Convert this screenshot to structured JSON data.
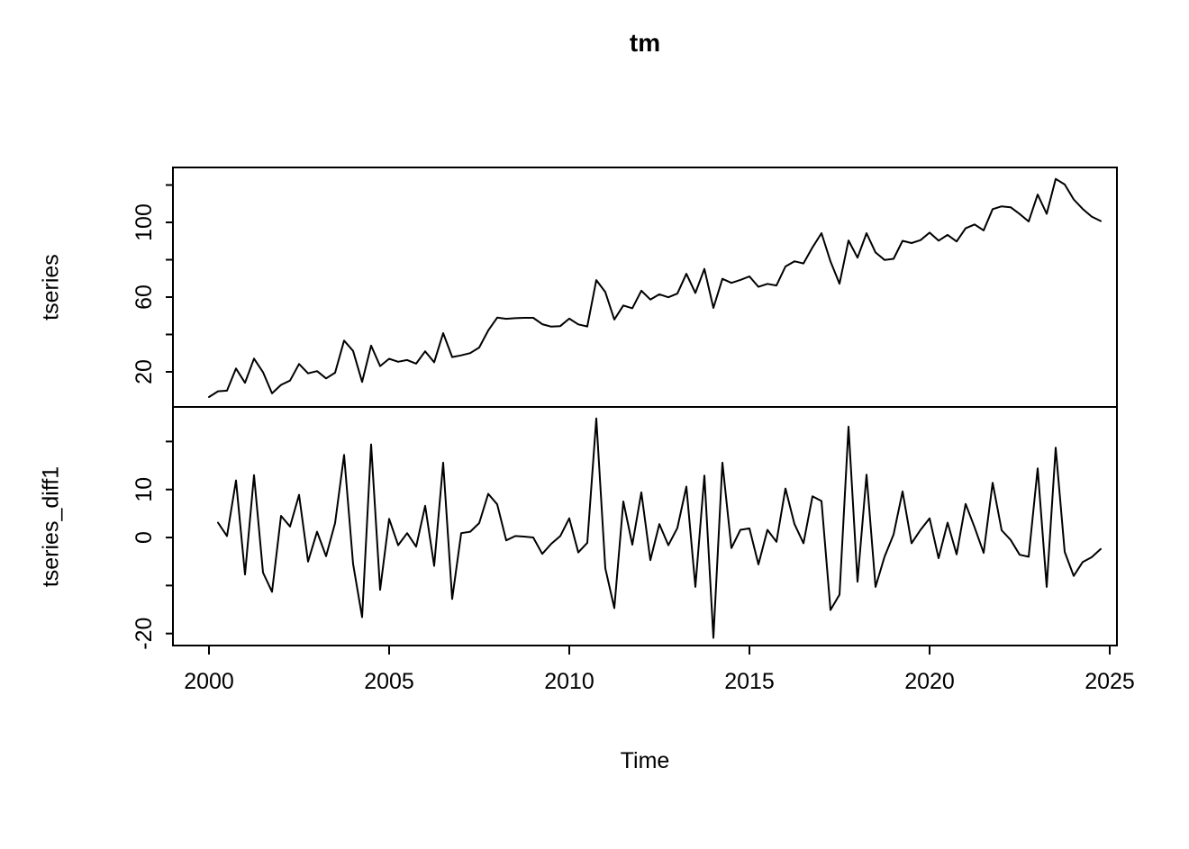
{
  "title": "tm",
  "x_axis": {
    "label": "Time",
    "ticks": [
      2000,
      2005,
      2010,
      2015,
      2020,
      2025
    ],
    "tick_labels": [
      "2000",
      "2005",
      "2010",
      "2015",
      "2020",
      "2025"
    ],
    "xlim": [
      1999.0,
      2025.2
    ]
  },
  "chart_data": [
    {
      "type": "line",
      "panel": "top",
      "series_name": "tseries",
      "ylabel": "tseries",
      "line_color": "#000000",
      "x_start": 2000.0,
      "x_step": 0.25,
      "ylim": [
        1.2,
        129.4
      ],
      "yticks": [
        20,
        40,
        60,
        80,
        100,
        120
      ],
      "ytick_labels": [
        "20",
        "",
        "60",
        "",
        "100",
        ""
      ],
      "values": [
        6.5,
        9.6,
        9.9,
        21.8,
        14.1,
        27.1,
        19.8,
        8.5,
        13.0,
        15.3,
        24.2,
        19.2,
        20.4,
        16.5,
        19.5,
        36.7,
        31.2,
        14.6,
        34.0,
        23.1,
        27.0,
        25.4,
        26.3,
        24.4,
        31.0,
        25.1,
        40.7,
        27.9,
        28.8,
        30.0,
        33.0,
        42.1,
        49.0,
        48.4,
        48.7,
        48.9,
        48.9,
        45.5,
        44.2,
        44.5,
        48.5,
        45.4,
        44.3,
        69.1,
        62.7,
        48.0,
        55.5,
        54.0,
        63.4,
        58.7,
        61.5,
        59.9,
        61.9,
        72.5,
        62.2,
        75.1,
        54.2,
        69.8,
        67.6,
        69.2,
        71.1,
        65.5,
        67.1,
        66.2,
        76.4,
        79.2,
        78.0,
        86.6,
        94.2,
        79.1,
        67.2,
        90.3,
        81.1,
        94.2,
        83.9,
        79.9,
        80.5,
        90.1,
        88.9,
        90.5,
        94.5,
        90.2,
        93.3,
        89.8,
        96.8,
        98.9,
        95.7,
        107.1,
        108.6,
        108.1,
        104.5,
        100.5,
        114.9,
        104.6,
        123.3,
        120.3,
        112.3,
        107.2,
        103.1,
        100.7
      ]
    },
    {
      "type": "line",
      "panel": "bottom",
      "series_name": "tseries_diff1",
      "ylabel": "tseries_diff1",
      "line_color": "#000000",
      "x_start": 2000.25,
      "x_step": 0.25,
      "ylim": [
        -22.5,
        27.2
      ],
      "yticks": [
        -20,
        -10,
        0,
        10,
        20
      ],
      "ytick_labels": [
        "-20",
        "",
        "0",
        "10",
        ""
      ],
      "values": [
        3.1,
        0.3,
        11.9,
        -7.7,
        13.0,
        -7.3,
        -11.3,
        4.5,
        2.3,
        8.9,
        -5.0,
        1.2,
        -3.9,
        3.0,
        17.2,
        -5.5,
        -16.6,
        19.4,
        -10.9,
        3.9,
        -1.6,
        0.9,
        -1.9,
        6.6,
        -5.9,
        15.6,
        -12.8,
        0.9,
        1.2,
        3.0,
        9.1,
        6.9,
        -0.6,
        0.3,
        0.2,
        0.0,
        -3.4,
        -1.3,
        0.3,
        4.0,
        -3.1,
        -1.1,
        24.8,
        -6.4,
        -14.7,
        7.5,
        -1.5,
        9.4,
        -4.7,
        2.8,
        -1.6,
        2.0,
        10.6,
        -10.3,
        12.9,
        -20.9,
        15.6,
        -2.2,
        1.6,
        1.9,
        -5.6,
        1.6,
        -0.9,
        10.2,
        2.8,
        -1.2,
        8.6,
        7.6,
        -15.1,
        -11.9,
        23.1,
        -9.2,
        13.1,
        -10.3,
        -4.0,
        0.6,
        9.6,
        -1.2,
        1.6,
        4.0,
        -4.3,
        3.1,
        -3.5,
        7.0,
        2.1,
        -3.2,
        11.4,
        1.5,
        -0.5,
        -3.6,
        -4.0,
        14.4,
        -10.3,
        18.7,
        -3.0,
        -8.0,
        -5.1,
        -4.1,
        -2.4
      ]
    }
  ]
}
